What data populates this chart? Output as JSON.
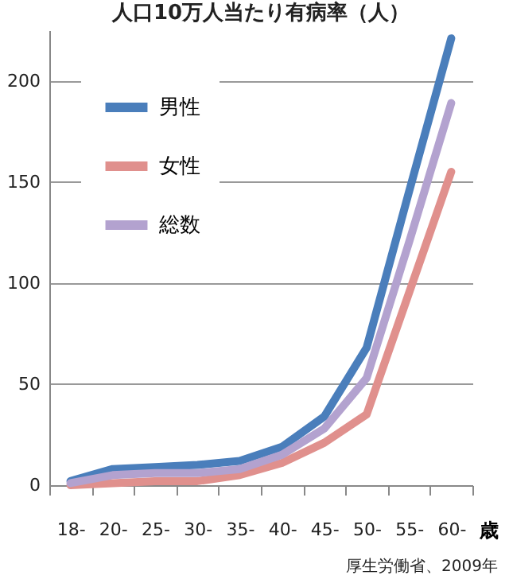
{
  "chart_data": {
    "type": "line",
    "title": "人口10万人当たり有病率（人）",
    "xlabel": "歳",
    "categories": [
      "18-",
      "20-",
      "25-",
      "30-",
      "35-",
      "40-",
      "45-",
      "50-",
      "55-",
      "60-"
    ],
    "series": [
      {
        "name": "男性",
        "color": "#4a7ebb",
        "values": [
          2,
          8,
          9,
          10,
          12,
          19,
          34,
          68,
          145,
          221
        ]
      },
      {
        "name": "女性",
        "color": "#e0908d",
        "values": [
          0,
          1,
          2,
          2,
          5,
          11,
          21,
          35,
          95,
          155
        ]
      },
      {
        "name": "総数",
        "color": "#b3a2cf",
        "values": [
          1,
          5,
          6,
          6,
          8,
          15,
          28,
          53,
          120,
          189
        ]
      }
    ],
    "ylim": [
      0,
      225
    ],
    "yticks": [
      0,
      50,
      100,
      150,
      200
    ],
    "grid": "y",
    "legend": "top left",
    "line_style": "solid",
    "marker": "none",
    "annotations": [
      "厚生労働省、2009年"
    ]
  }
}
